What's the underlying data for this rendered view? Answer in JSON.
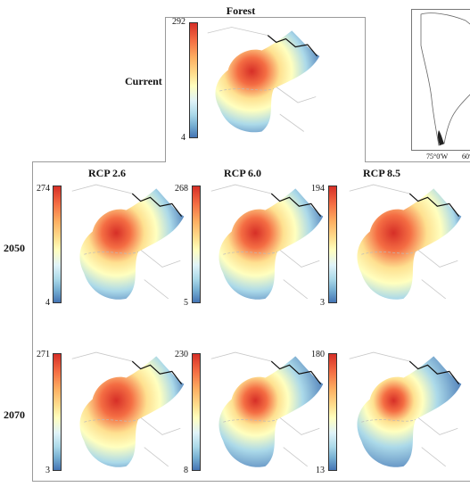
{
  "header": {
    "title": "Forest"
  },
  "rows": {
    "current": "Current",
    "y2050": "2050",
    "y2070": "2070"
  },
  "columns": {
    "rcp26": "RCP 2.6",
    "rcp60": "RCP 6.0",
    "rcp85": "RCP 8.5"
  },
  "inset": {
    "lon1": "75°0'W",
    "lon2": "60°"
  },
  "maps": {
    "current": {
      "max": "292",
      "min": "4",
      "hot": 0.55
    },
    "m2050_26": {
      "max": "274",
      "min": "4",
      "hot": 0.55
    },
    "m2050_60": {
      "max": "268",
      "min": "5",
      "hot": 0.55
    },
    "m2050_85": {
      "max": "194",
      "min": "3",
      "hot": 0.65
    },
    "m2070_26": {
      "max": "271",
      "min": "3",
      "hot": 0.6
    },
    "m2070_60": {
      "max": "230",
      "min": "8",
      "hot": 0.45
    },
    "m2070_85": {
      "max": "180",
      "min": "13",
      "hot": 0.4
    }
  },
  "colors": {
    "high": "#d62f27",
    "mid": "#ffffbf",
    "low": "#4575b4"
  }
}
